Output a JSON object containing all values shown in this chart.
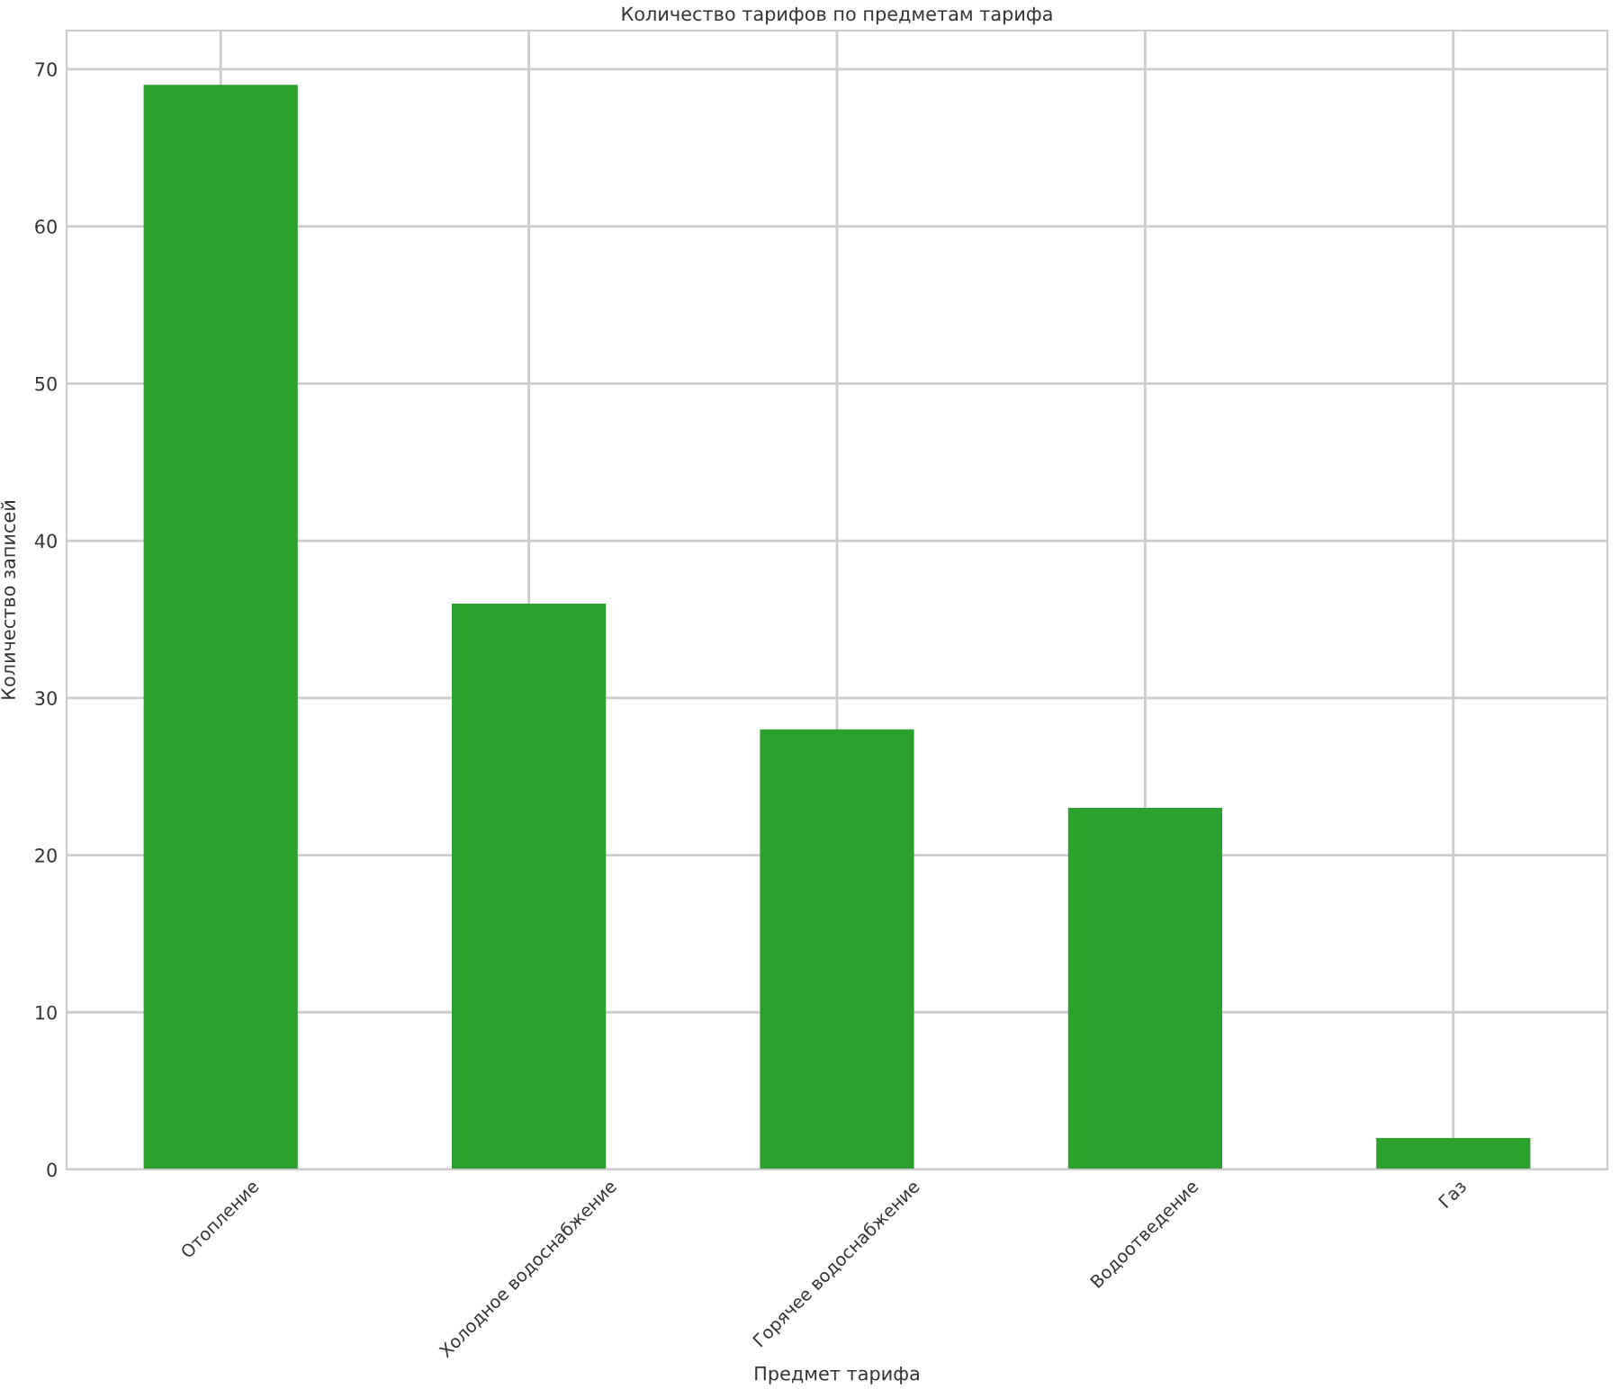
{
  "chart_data": {
    "type": "bar",
    "title": "Количество тарифов по предметам тарифа",
    "xlabel": "Предмет тарифа",
    "ylabel": "Количество записей",
    "categories": [
      "Отопление",
      "Холодное водоснабжение",
      "Горячее водоснабжение",
      "Водоотведение",
      "Газ"
    ],
    "values": [
      69,
      36,
      28,
      23,
      2
    ],
    "color": "#2ca02c",
    "ylim": [
      0,
      72.45
    ],
    "yticks": [
      0,
      10,
      20,
      30,
      40,
      50,
      60,
      70
    ],
    "grid": true
  }
}
